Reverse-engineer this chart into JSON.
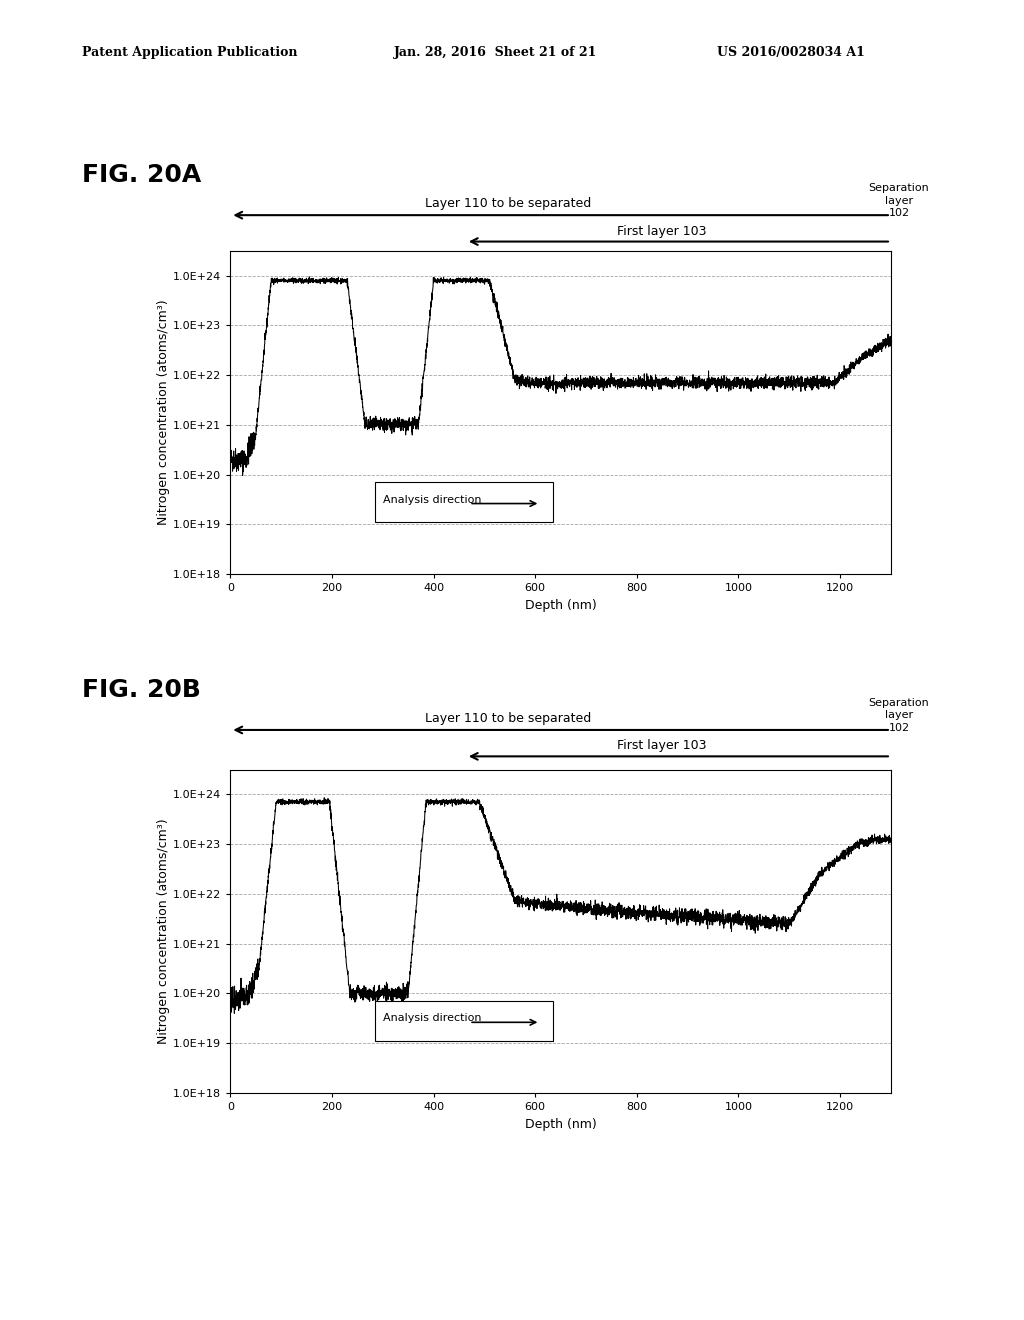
{
  "header_left": "Patent Application Publication",
  "header_mid": "Jan. 28, 2016  Sheet 21 of 21",
  "header_right": "US 2016/0028034 A1",
  "fig_a_label": "FIG. 20A",
  "fig_b_label": "FIG. 20B",
  "layer110_label": "Layer 110 to be separated",
  "first_layer_label": "First layer 103",
  "separation_layer_label": "Separation\nlayer\n102",
  "analysis_direction_label": "Analysis direction",
  "xlabel": "Depth (nm)",
  "ylabel": "Nitrogen concentration (atoms/cm³)",
  "xlim": [
    0,
    1300
  ],
  "ytick_exponents": [
    18,
    19,
    20,
    21,
    22,
    23,
    24
  ],
  "ytick_labels": [
    "1.0E+18",
    "1.0E+19",
    "1.0E+20",
    "1.0E+21",
    "1.0E+22",
    "1.0E+23",
    "1.0E+24"
  ],
  "xticks": [
    0,
    200,
    400,
    600,
    800,
    1000,
    1200
  ],
  "background": "#ffffff",
  "line_color": "#000000"
}
